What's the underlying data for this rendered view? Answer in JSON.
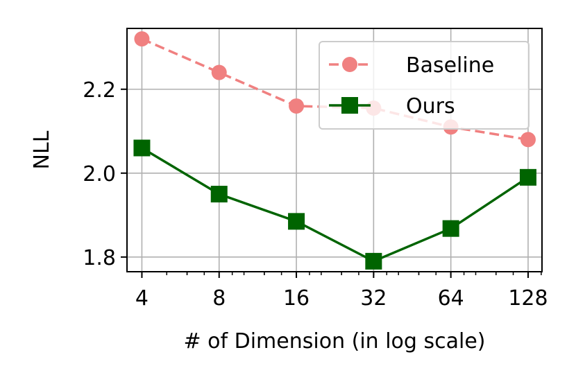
{
  "chart_data": {
    "type": "line",
    "title": "",
    "xlabel": "# of Dimension (in log scale)",
    "ylabel": "NLL",
    "x_scale": "log2",
    "x": [
      4,
      8,
      16,
      32,
      64,
      128
    ],
    "x_tick_labels": [
      "4",
      "8",
      "16",
      "32",
      "64",
      "128"
    ],
    "y_ticks": [
      1.8,
      2.0,
      2.2
    ],
    "y_tick_labels": [
      "1.8",
      "2.0",
      "2.2"
    ],
    "xlim": [
      3.5,
      145
    ],
    "ylim": [
      1.765,
      2.345
    ],
    "grid": true,
    "legend_position": "top-right",
    "series": [
      {
        "name": "Baseline",
        "values": [
          2.32,
          2.24,
          2.16,
          2.155,
          2.11,
          2.08
        ],
        "color": "#F08080",
        "line_style": "dashed",
        "marker": "circle"
      },
      {
        "name": "Ours",
        "values": [
          2.06,
          1.95,
          1.885,
          1.79,
          1.868,
          1.99
        ],
        "color": "#006400",
        "line_style": "solid",
        "marker": "square"
      }
    ]
  }
}
